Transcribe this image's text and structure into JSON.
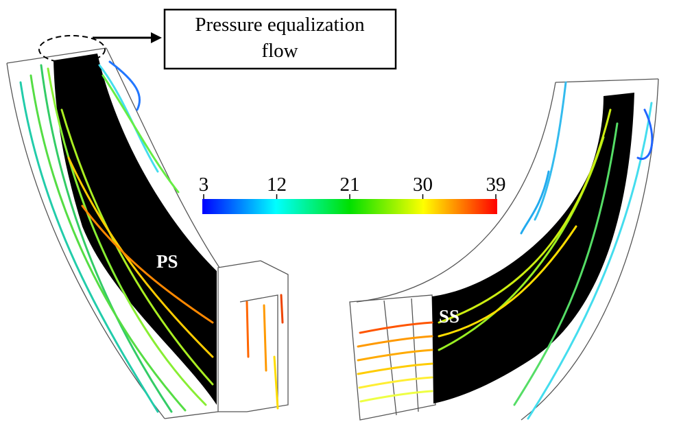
{
  "annotation": {
    "lines": [
      "Pressure equalization",
      "flow"
    ]
  },
  "colorbar": {
    "ticks": [
      3,
      12,
      21,
      30,
      39
    ]
  },
  "labels": {
    "pressure_side": "PS",
    "suction_side": "SS"
  }
}
